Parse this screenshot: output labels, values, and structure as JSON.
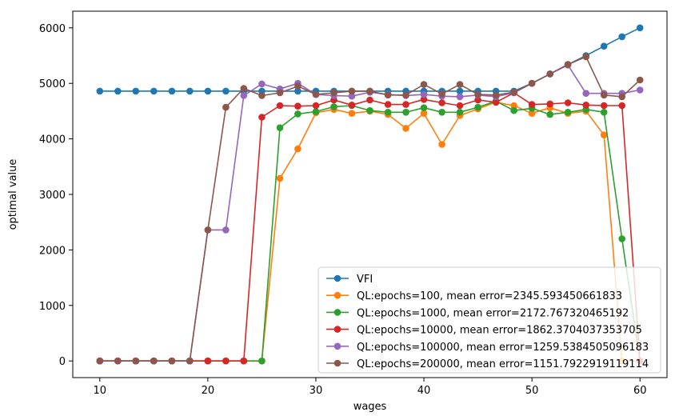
{
  "chart_data": {
    "type": "line",
    "title": "",
    "xlabel": "wages",
    "ylabel": "optimal value",
    "xlim": [
      7.5,
      62.5
    ],
    "ylim": [
      -300,
      6300
    ],
    "xticks": [
      10,
      20,
      30,
      40,
      50,
      60
    ],
    "yticks": [
      0,
      1000,
      2000,
      3000,
      4000,
      5000,
      6000
    ],
    "grid": false,
    "legend_position": "lower-right",
    "x": [
      10.0,
      11.67,
      13.33,
      15.0,
      16.67,
      18.33,
      20.0,
      21.67,
      23.33,
      25.0,
      26.67,
      28.33,
      30.0,
      31.67,
      33.33,
      35.0,
      36.67,
      38.33,
      40.0,
      41.67,
      43.33,
      45.0,
      46.67,
      48.33,
      50.0,
      51.67,
      53.33,
      55.0,
      56.67,
      58.33,
      60.0
    ],
    "series": [
      {
        "name": "VFI",
        "color": "#1f77b4",
        "values": [
          4860,
          4860,
          4860,
          4860,
          4860,
          4860,
          4860,
          4860,
          4860,
          4860,
          4860,
          4860,
          4860,
          4860,
          4860,
          4860,
          4860,
          4860,
          4860,
          4860,
          4860,
          4860,
          4860,
          4860,
          5000,
          5170,
          5340,
          5500,
          5670,
          5840,
          6000
        ]
      },
      {
        "name": "QL:epochs=100, mean error=2345.593450661833",
        "color": "#ff7f0e",
        "values": [
          0,
          0,
          0,
          0,
          0,
          0,
          0,
          0,
          0,
          0,
          3290,
          3820,
          4470,
          4530,
          4460,
          4500,
          4440,
          4190,
          4460,
          3900,
          4420,
          4540,
          4660,
          4600,
          4460,
          4560,
          4460,
          4500,
          4070,
          0,
          0
        ]
      },
      {
        "name": "QL:epochs=1000, mean error=2172.767320465192",
        "color": "#2ca02c",
        "values": [
          0,
          0,
          0,
          0,
          0,
          0,
          0,
          0,
          0,
          0,
          4200,
          4450,
          4490,
          4580,
          4600,
          4510,
          4480,
          4480,
          4560,
          4480,
          4480,
          4570,
          4680,
          4510,
          4550,
          4440,
          4480,
          4530,
          4480,
          2200,
          0
        ]
      },
      {
        "name": "QL:epochs=10000, mean error=1862.3704037353705",
        "color": "#d62728",
        "values": [
          0,
          0,
          0,
          0,
          0,
          0,
          0,
          0,
          0,
          4390,
          4600,
          4590,
          4600,
          4700,
          4610,
          4700,
          4620,
          4620,
          4710,
          4650,
          4600,
          4700,
          4660,
          4830,
          4620,
          4630,
          4650,
          4610,
          4600,
          4600,
          0
        ]
      },
      {
        "name": "QL:epochs=100000, mean error=1259.5384505096183",
        "color": "#9467bd",
        "values": [
          0,
          0,
          0,
          0,
          0,
          0,
          2360,
          2360,
          4780,
          4990,
          4900,
          5000,
          4800,
          4780,
          4770,
          4840,
          4800,
          4780,
          4800,
          4770,
          4760,
          4790,
          4760,
          4830,
          5000,
          5170,
          5330,
          4820,
          4820,
          4820,
          4880
        ]
      },
      {
        "name": "QL:epochs=200000, mean error=1151.7922919119114",
        "color": "#8c564b",
        "values": [
          0,
          0,
          0,
          0,
          0,
          0,
          2360,
          4570,
          4910,
          4780,
          4830,
          4950,
          4800,
          4830,
          4860,
          4860,
          4790,
          4790,
          4980,
          4810,
          4980,
          4800,
          4790,
          4840,
          5000,
          5170,
          5340,
          5480,
          4790,
          4760,
          5060
        ]
      }
    ]
  }
}
